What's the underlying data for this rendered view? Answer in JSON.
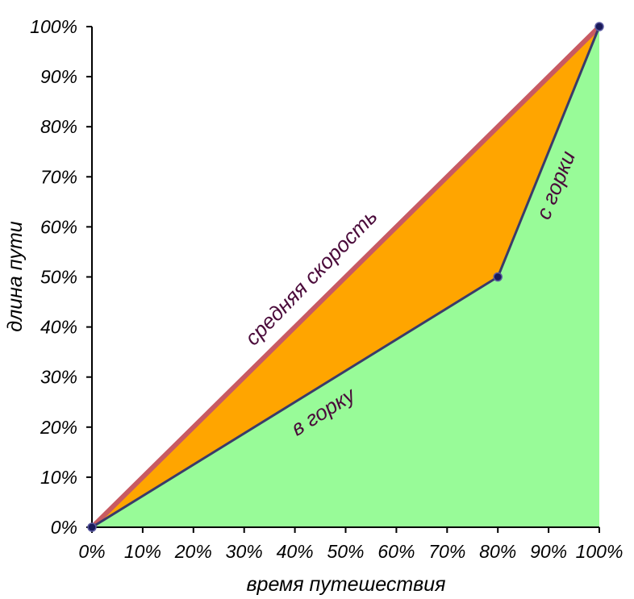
{
  "chart_data": {
    "type": "area",
    "xlabel": "время путешествия",
    "ylabel": "длина пути",
    "xlim": [
      0,
      100
    ],
    "ylim": [
      0,
      100
    ],
    "x_ticks": [
      "0%",
      "10%",
      "20%",
      "30%",
      "40%",
      "50%",
      "60%",
      "70%",
      "80%",
      "90%",
      "100%"
    ],
    "y_ticks": [
      "0%",
      "10%",
      "20%",
      "30%",
      "40%",
      "50%",
      "60%",
      "70%",
      "80%",
      "90%",
      "100%"
    ],
    "grid": false,
    "series": [
      {
        "name": "средняя скорость",
        "color": "#c85a62",
        "points": [
          [
            0,
            0
          ],
          [
            100,
            100
          ]
        ]
      },
      {
        "name": "в горку",
        "color": "#3a3a6a",
        "points": [
          [
            0,
            0
          ],
          [
            80,
            50
          ]
        ]
      },
      {
        "name": "с горки",
        "color": "#3a3a6a",
        "points": [
          [
            80,
            50
          ],
          [
            100,
            100
          ]
        ]
      }
    ],
    "fills": {
      "between_color": "#ffa500",
      "below_color": "#98fb98"
    },
    "markers": [
      [
        0,
        0
      ],
      [
        80,
        50
      ],
      [
        100,
        100
      ]
    ],
    "marker_color": "#1a1a5a"
  }
}
